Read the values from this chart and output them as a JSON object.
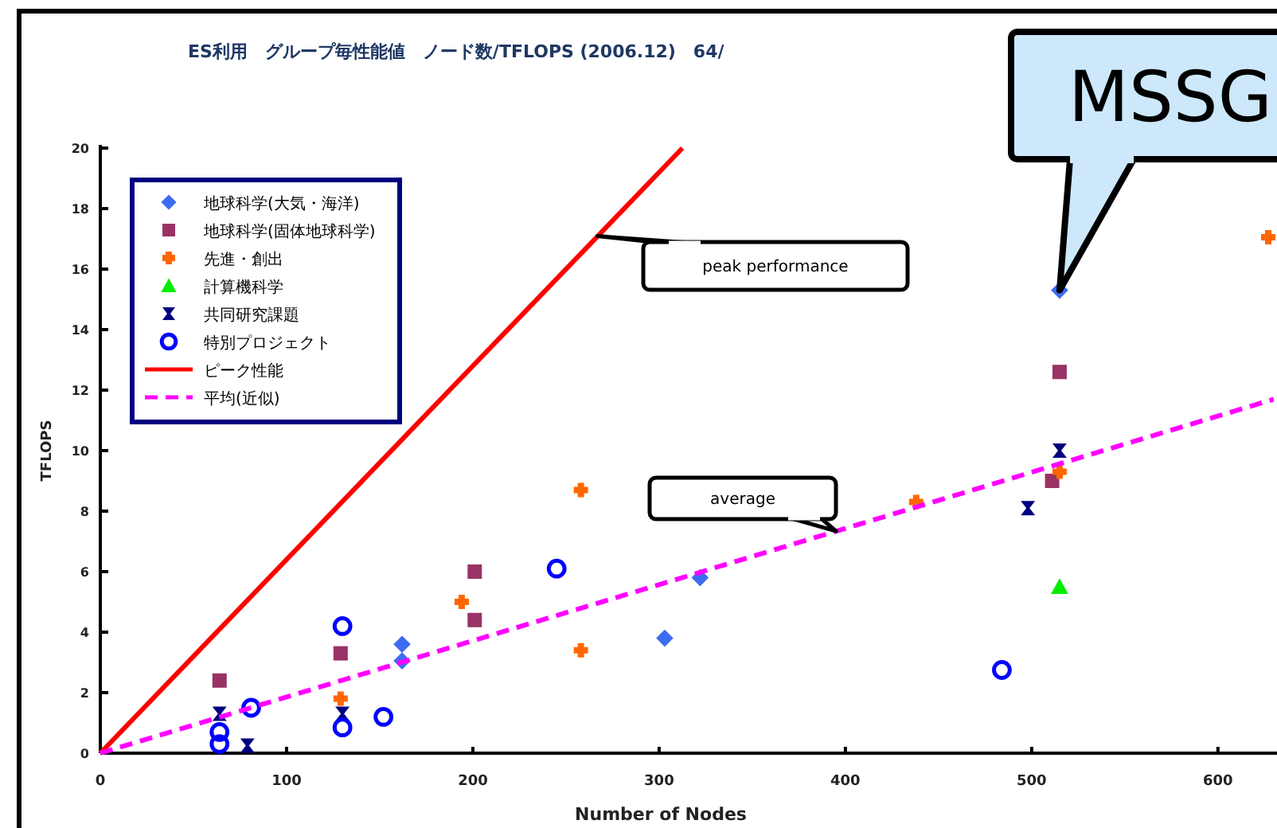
{
  "chart_data": {
    "type": "scatter",
    "title": "ES利用　グループ毎性能値　ノード数/TFLOPS (2006.12)　64/",
    "xlabel": "Number of Nodes",
    "ylabel": "TFLOPS",
    "xlim": [
      0,
      630
    ],
    "xticks": [
      0,
      100,
      200,
      300,
      400,
      500,
      600
    ],
    "ylim": [
      0,
      20
    ],
    "yticks": [
      0,
      2,
      4,
      6,
      8,
      10,
      12,
      14,
      16,
      18,
      20
    ],
    "grid": false,
    "legend": "top left",
    "series": [
      {
        "name": "地球科学(大気・海洋)",
        "color": "#3d6cf0",
        "marker": "diamond",
        "x": [
          162,
          162,
          322,
          303,
          515
        ],
        "values": [
          3.6,
          3.05,
          5.8,
          3.8,
          15.3
        ]
      },
      {
        "name": "地球科学(固体地球科学)",
        "color": "#993366",
        "marker": "square",
        "x": [
          64,
          129,
          201,
          201,
          515,
          511
        ],
        "values": [
          2.4,
          3.3,
          6.0,
          4.4,
          12.6,
          9.0
        ]
      },
      {
        "name": "先進・創出",
        "color": "#ff6600",
        "marker": "cross",
        "x": [
          129,
          194,
          258,
          258,
          438,
          515,
          627
        ],
        "values": [
          1.8,
          5.0,
          8.7,
          3.4,
          8.3,
          9.3,
          17.05
        ]
      },
      {
        "name": "計算機科学",
        "color": "#00ee00",
        "marker": "triangle",
        "x": [
          515
        ],
        "values": [
          5.5
        ]
      },
      {
        "name": "共同研究課題",
        "color": "#000080",
        "marker": "star",
        "x": [
          64,
          79,
          130,
          498,
          515
        ],
        "values": [
          1.3,
          0.25,
          1.3,
          8.1,
          10.0
        ]
      },
      {
        "name": "特別プロジェクト",
        "color": "#0000ff",
        "marker": "circle",
        "x": [
          64,
          64,
          81,
          130,
          130,
          152,
          245,
          484
        ],
        "values": [
          0.3,
          0.7,
          1.5,
          4.2,
          0.85,
          1.2,
          6.1,
          2.75
        ]
      },
      {
        "name": "ピーク性能",
        "type": "line",
        "color": "#ff0000",
        "line_style": "solid",
        "marker": "none",
        "x": [
          0,
          312.5
        ],
        "values": [
          0,
          20
        ]
      },
      {
        "name": "平均(近似)",
        "type": "line",
        "color": "#ff00ff",
        "line_style": "dashed",
        "marker": "none",
        "x": [
          0,
          630
        ],
        "values": [
          0,
          11.7
        ]
      }
    ],
    "annotations": [
      {
        "text": "peak performance",
        "x": 267,
        "y": 17.09
      },
      {
        "text": "average",
        "x": 395,
        "y": 7.34
      },
      {
        "text": "MSSG",
        "x": 515,
        "y": 15.3
      }
    ]
  }
}
